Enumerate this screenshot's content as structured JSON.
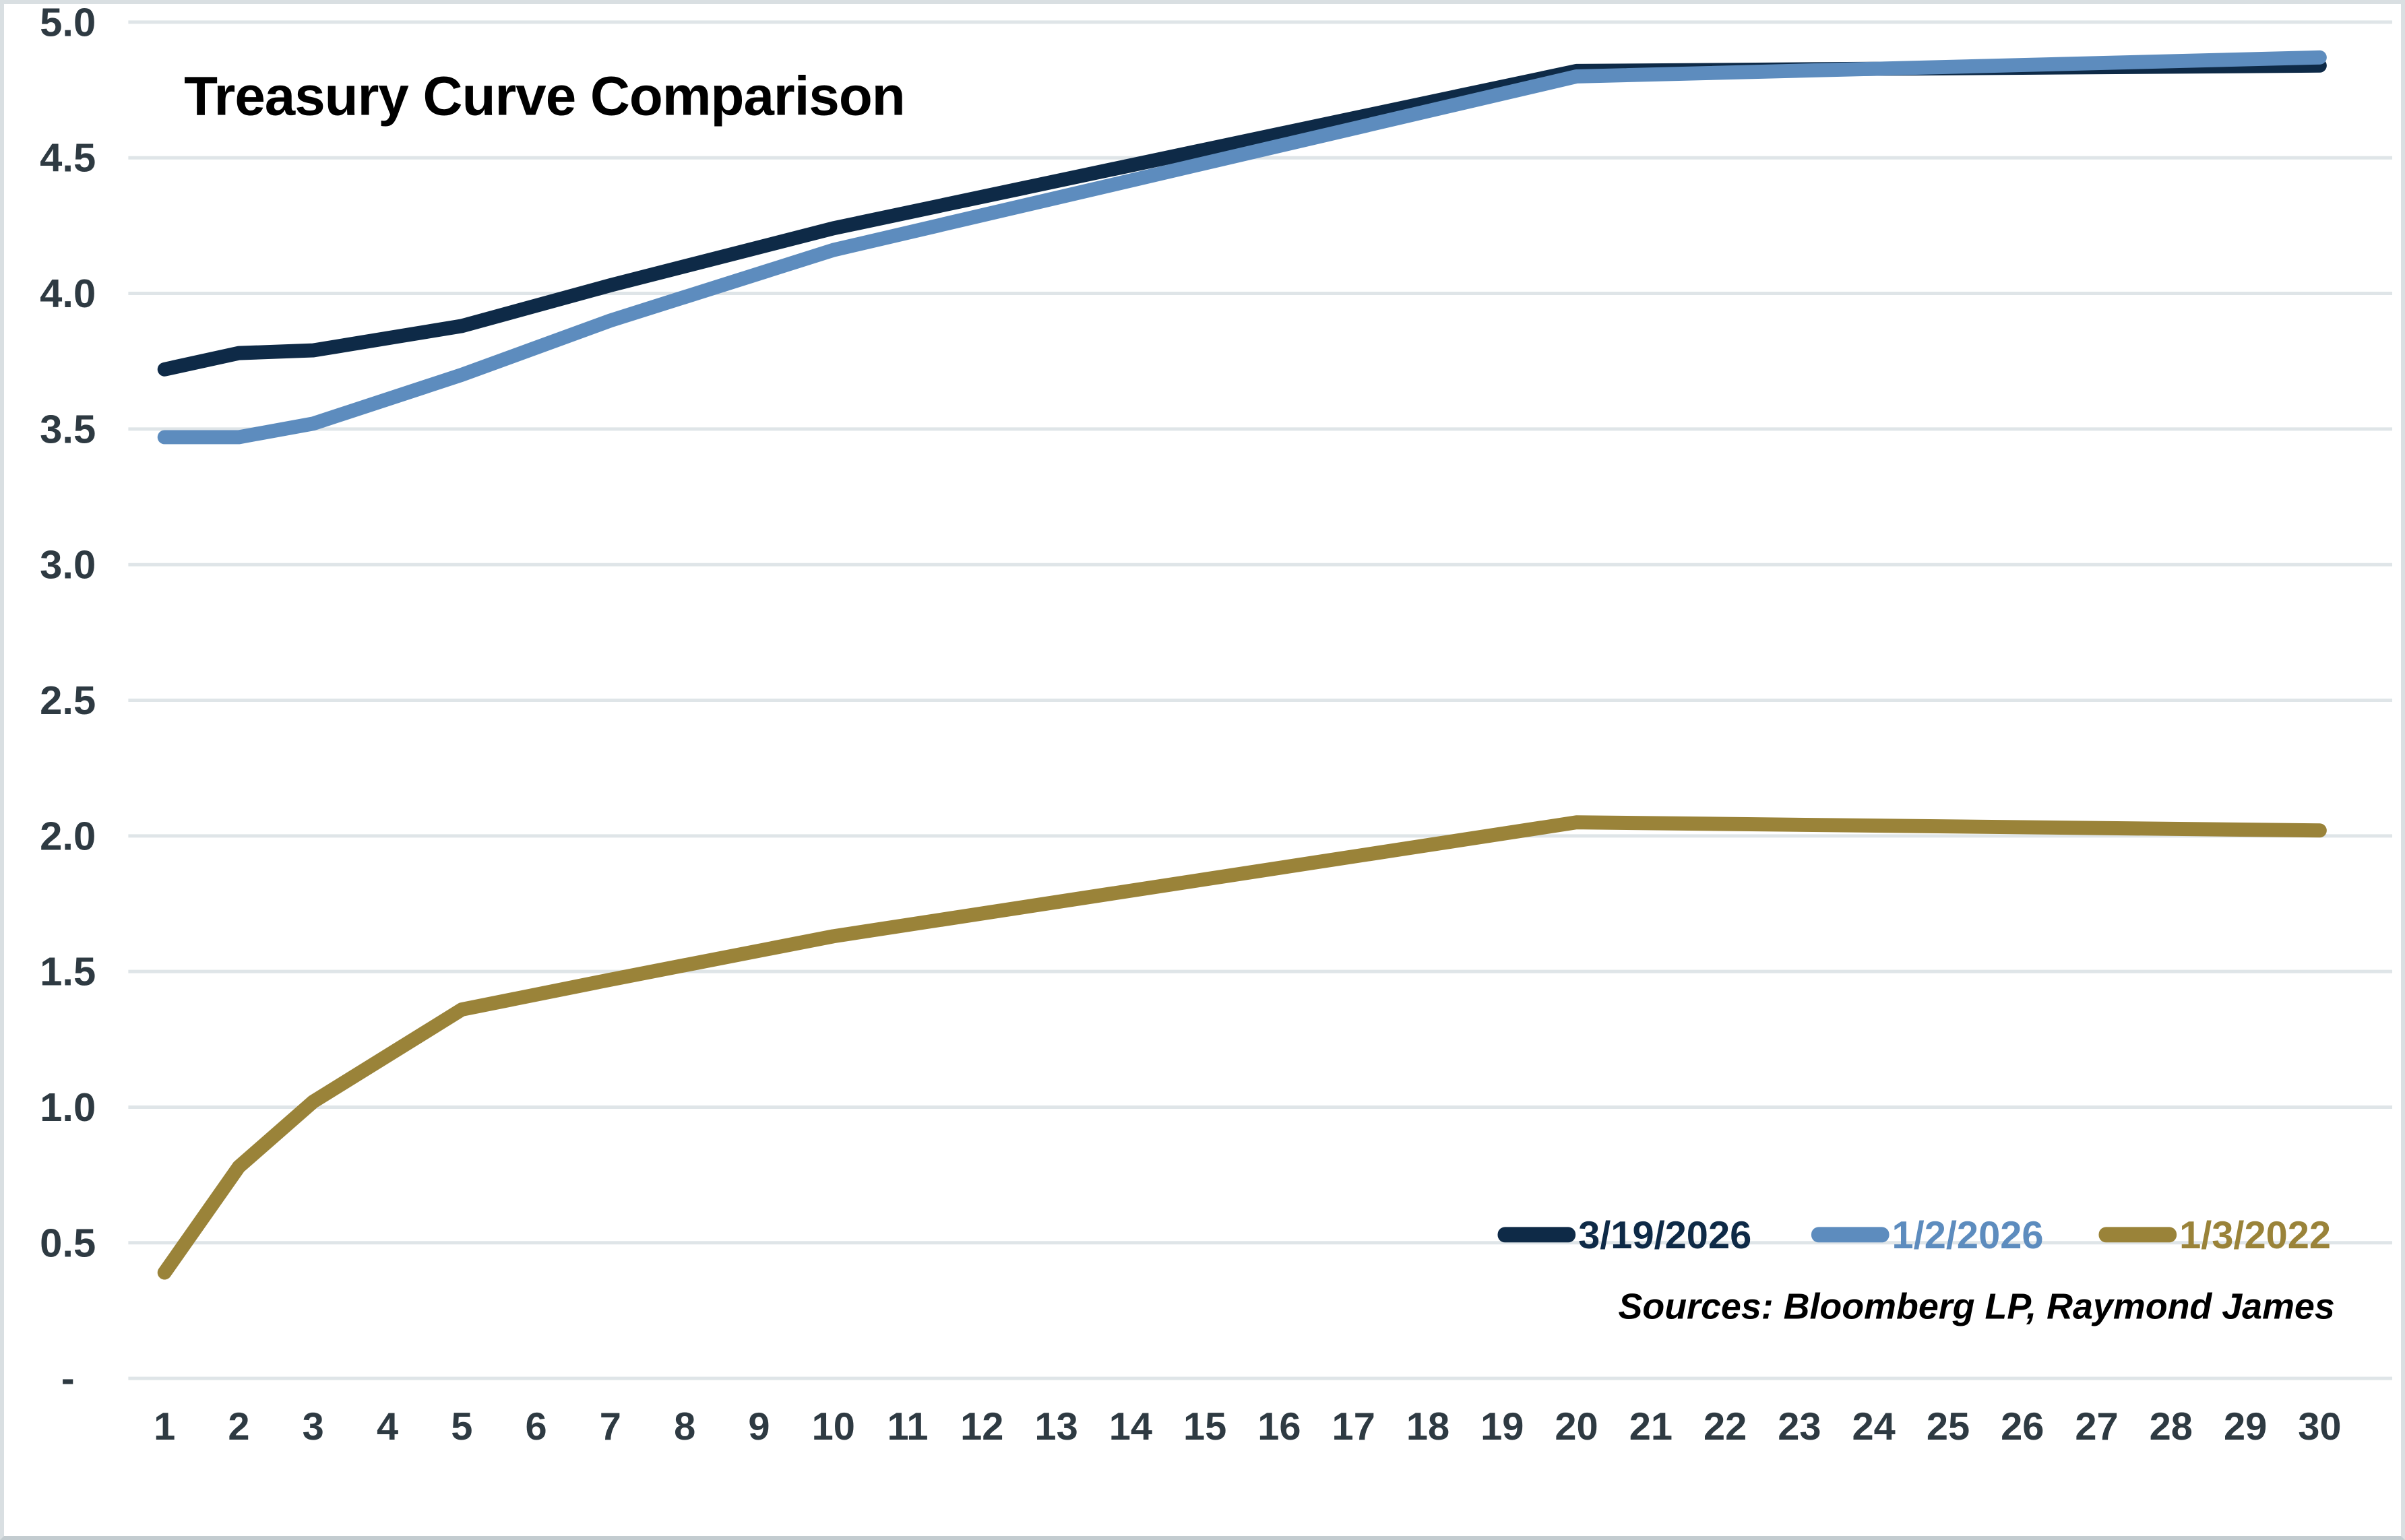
{
  "title": "Treasury Curve Comparison",
  "source_note": "Sources: Bloomberg LP, Raymond James",
  "colors": {
    "axis_text": "#2e3a42",
    "title_text": "#2c3842",
    "gridline": "#dfe5e8",
    "source_text": "#000000",
    "frame_border": "#d9dfe2"
  },
  "chart_data": {
    "type": "line",
    "title": "Treasury Curve Comparison",
    "xlabel": "",
    "ylabel": "",
    "x": [
      1,
      2,
      3,
      5,
      7,
      10,
      20,
      30
    ],
    "series": [
      {
        "name": "3/19/2026",
        "color": "#0e2a47",
        "values": [
          3.72,
          3.78,
          3.79,
          3.88,
          4.03,
          4.24,
          4.82,
          4.84
        ]
      },
      {
        "name": "1/2/2026",
        "color": "#5d8cbe",
        "values": [
          3.47,
          3.47,
          3.52,
          3.7,
          3.9,
          4.16,
          4.8,
          4.87
        ]
      },
      {
        "name": "1/3/2022",
        "color": "#9a8339",
        "values": [
          0.39,
          0.78,
          1.02,
          1.36,
          1.47,
          1.63,
          2.05,
          2.02
        ]
      }
    ],
    "ylim": [
      0,
      5
    ],
    "y_tick_values": [
      5.0,
      4.5,
      4.0,
      3.5,
      3.0,
      2.5,
      2.0,
      1.5,
      1.0,
      0.5,
      0.0
    ],
    "y_tick_labels": [
      "5.0",
      "4.5",
      "4.0",
      "3.5",
      "3.0",
      "2.5",
      "2.0",
      "1.5",
      "1.0",
      "0.5",
      "-"
    ],
    "x_tick_labels": [
      "1",
      "2",
      "3",
      "4",
      "5",
      "6",
      "7",
      "8",
      "9",
      "10",
      "11",
      "12",
      "13",
      "14",
      "15",
      "16",
      "17",
      "18",
      "19",
      "20",
      "21",
      "22",
      "23",
      "24",
      "25",
      "26",
      "27",
      "28",
      "29",
      "30"
    ],
    "grid": true,
    "legend_position": "inside-bottom-right"
  }
}
